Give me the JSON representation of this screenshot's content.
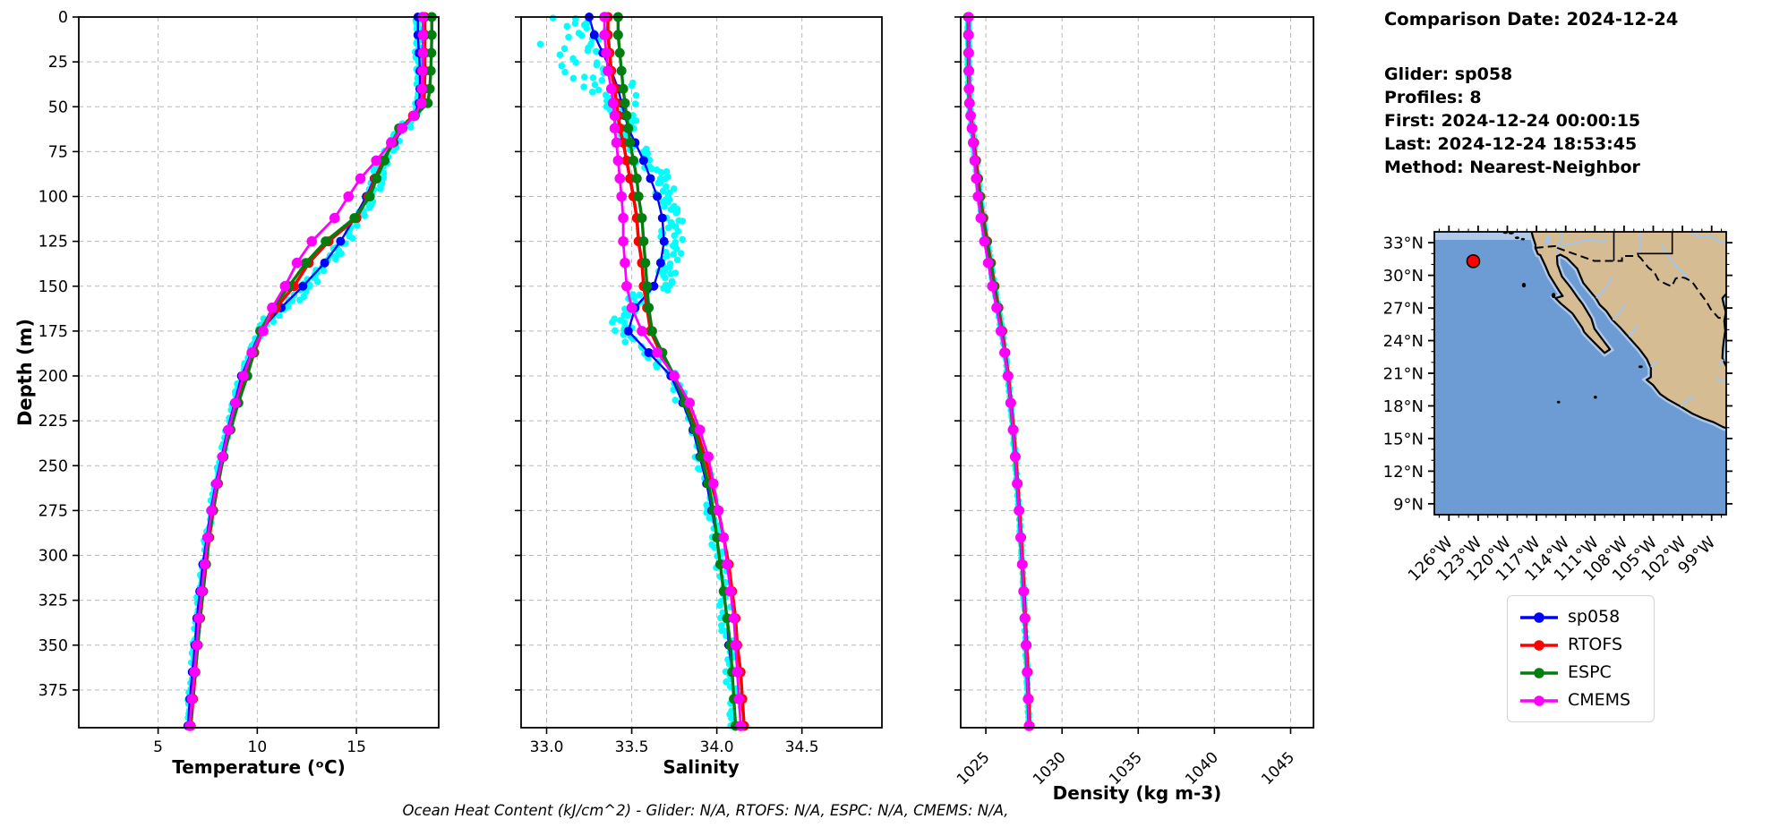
{
  "info": {
    "comparison_date": "Comparison Date: 2024-12-24",
    "glider": "Glider: sp058",
    "profiles": "Profiles: 8",
    "first": "First: 2024-12-24 00:00:15",
    "last": "Last: 2024-12-24 18:53:45",
    "method": "Method: Nearest-Neighbor"
  },
  "caption": "Ocean Heat Content (kJ/cm^2) - Glider: N/A,  RTOFS: N/A,  ESPC: N/A,  CMEMS: N/A,",
  "legend": {
    "items": [
      {
        "label": "sp058",
        "color": "#0000ff"
      },
      {
        "label": "RTOFS",
        "color": "#ff0000"
      },
      {
        "label": "ESPC",
        "color": "#007f0e"
      },
      {
        "label": "CMEMS",
        "color": "#ff00ff"
      }
    ]
  },
  "colors": {
    "grid": "#b8b8b8",
    "spine": "#000000",
    "scatter": "#00ffff",
    "map_ocean": "#6d9bd3",
    "map_shallow": "#b0c9e8",
    "map_land": "#d5bc93",
    "map_river": "#a4c6ea",
    "map_marker": "#ff0000"
  },
  "chart_data": [
    {
      "type": "line",
      "panel": "temperature-profile",
      "xlabel": "Temperature (ᵒC)",
      "ylabel": "Depth (m)",
      "xlim": [
        1.0,
        19.15
      ],
      "ylim": [
        396,
        0
      ],
      "xticks": [
        5,
        10,
        15
      ],
      "yticks": [
        0,
        25,
        50,
        75,
        100,
        125,
        150,
        175,
        200,
        225,
        250,
        275,
        300,
        325,
        350,
        375
      ],
      "depths": [
        0,
        10,
        20,
        30,
        40,
        48,
        55,
        62,
        70,
        80,
        90,
        100,
        112,
        125,
        137,
        150,
        162,
        175,
        187,
        200,
        215,
        230,
        245,
        260,
        275,
        290,
        305,
        320,
        335,
        350,
        365,
        380,
        395
      ],
      "series": [
        {
          "name": "sp058",
          "color": "#0000ff",
          "values": [
            18.1,
            18.1,
            18.15,
            18.2,
            18.2,
            18.15,
            17.9,
            17.35,
            16.9,
            16.35,
            15.9,
            15.5,
            14.9,
            14.2,
            13.4,
            12.3,
            11.2,
            10.15,
            9.7,
            9.2,
            8.85,
            8.5,
            8.2,
            7.9,
            7.65,
            7.45,
            7.25,
            7.1,
            6.95,
            6.85,
            6.72,
            6.6,
            6.5
          ]
        },
        {
          "name": "RTOFS",
          "color": "#ff0000",
          "values": [
            18.45,
            18.45,
            18.45,
            18.45,
            18.43,
            18.4,
            17.85,
            17.25,
            16.85,
            16.35,
            15.95,
            15.6,
            15.0,
            13.6,
            12.6,
            11.85,
            10.95,
            10.25,
            9.85,
            9.45,
            9.0,
            8.62,
            8.3,
            8.02,
            7.78,
            7.58,
            7.42,
            7.27,
            7.12,
            7.0,
            6.88,
            6.76,
            6.65
          ]
        },
        {
          "name": "ESPC",
          "color": "#007f0e",
          "values": [
            18.8,
            18.8,
            18.78,
            18.75,
            18.7,
            18.6,
            17.95,
            17.15,
            16.8,
            16.42,
            16.02,
            15.68,
            14.9,
            13.45,
            12.45,
            11.6,
            10.8,
            10.15,
            9.82,
            9.5,
            9.05,
            8.65,
            8.3,
            8.0,
            7.75,
            7.55,
            7.4,
            7.25,
            7.1,
            7.0,
            6.85,
            6.72,
            6.6
          ]
        },
        {
          "name": "CMEMS",
          "color": "#ff00ff",
          "values": [
            18.35,
            18.35,
            18.35,
            18.33,
            18.3,
            18.28,
            17.9,
            17.3,
            16.75,
            16.0,
            15.2,
            14.6,
            13.9,
            12.75,
            12.0,
            11.4,
            10.75,
            10.3,
            9.72,
            9.3,
            8.9,
            8.55,
            8.25,
            7.95,
            7.7,
            7.5,
            7.35,
            7.2,
            7.05,
            6.95,
            6.83,
            6.7,
            6.6
          ]
        }
      ],
      "scatter": {
        "name": "sp058 raw profiles",
        "color": "#00ffff",
        "follows": "sp058",
        "jitter_shallow": 0.18,
        "jitter_mid": 0.32,
        "jitter_deep": 0.12
      }
    },
    {
      "type": "line",
      "panel": "salinity-profile",
      "xlabel": "Salinity",
      "ylabel": "Depth (m)",
      "xlim": [
        32.85,
        34.97
      ],
      "ylim": [
        396,
        0
      ],
      "xticks": [
        33.0,
        33.5,
        34.0,
        34.5
      ],
      "yticks": [
        0,
        25,
        50,
        75,
        100,
        125,
        150,
        175,
        200,
        225,
        250,
        275,
        300,
        325,
        350,
        375
      ],
      "depths": [
        0,
        10,
        20,
        30,
        40,
        48,
        55,
        62,
        70,
        80,
        90,
        100,
        112,
        125,
        137,
        150,
        162,
        175,
        187,
        200,
        215,
        230,
        245,
        260,
        275,
        290,
        305,
        320,
        335,
        350,
        365,
        380,
        395
      ],
      "series": [
        {
          "name": "sp058",
          "color": "#0000ff",
          "values": [
            33.25,
            33.28,
            33.33,
            33.38,
            33.42,
            33.44,
            33.46,
            33.48,
            33.52,
            33.57,
            33.61,
            33.65,
            33.68,
            33.69,
            33.67,
            33.63,
            33.52,
            33.48,
            33.6,
            33.73,
            33.8,
            33.86,
            33.9,
            33.94,
            33.97,
            34.0,
            34.02,
            34.04,
            34.06,
            34.07,
            34.09,
            34.1,
            34.11
          ]
        },
        {
          "name": "RTOFS",
          "color": "#ff0000",
          "values": [
            33.36,
            33.36,
            33.37,
            33.38,
            33.4,
            33.41,
            33.42,
            33.43,
            33.45,
            33.47,
            33.49,
            33.51,
            33.53,
            33.54,
            33.56,
            33.57,
            33.59,
            33.61,
            33.67,
            33.75,
            33.82,
            33.88,
            33.93,
            33.97,
            34.01,
            34.04,
            34.07,
            34.09,
            34.11,
            34.12,
            34.14,
            34.15,
            34.16
          ]
        },
        {
          "name": "ESPC",
          "color": "#007f0e",
          "values": [
            33.42,
            33.42,
            33.43,
            33.44,
            33.45,
            33.46,
            33.47,
            33.48,
            33.49,
            33.51,
            33.53,
            33.54,
            33.56,
            33.57,
            33.58,
            33.59,
            33.6,
            33.62,
            33.68,
            33.75,
            33.81,
            33.87,
            33.91,
            33.95,
            33.98,
            34.0,
            34.02,
            34.04,
            34.06,
            34.08,
            34.09,
            34.1,
            34.11
          ]
        },
        {
          "name": "CMEMS",
          "color": "#ff00ff",
          "values": [
            33.34,
            33.34,
            33.35,
            33.36,
            33.38,
            33.39,
            33.4,
            33.4,
            33.41,
            33.42,
            33.43,
            33.44,
            33.45,
            33.45,
            33.46,
            33.47,
            33.5,
            33.56,
            33.65,
            33.75,
            33.84,
            33.9,
            33.95,
            33.98,
            34.01,
            34.04,
            34.06,
            34.08,
            34.1,
            34.11,
            34.12,
            34.13,
            34.14
          ]
        }
      ],
      "scatter": {
        "name": "sp058 raw profiles",
        "color": "#00ffff",
        "follows": "sp058",
        "jitter_shallow": 0.1,
        "jitter_mid": 0.07,
        "jitter_deep": 0.04
      }
    },
    {
      "type": "line",
      "panel": "density-profile",
      "xlabel": "Density (kg m-3)",
      "ylabel": "Depth (m)",
      "xlim": [
        1023.35,
        1046.5
      ],
      "ylim": [
        396,
        0
      ],
      "xticks": [
        1025,
        1030,
        1035,
        1040,
        1045
      ],
      "xtick_rotation": 45,
      "yticks": [
        0,
        25,
        50,
        75,
        100,
        125,
        150,
        175,
        200,
        225,
        250,
        275,
        300,
        325,
        350,
        375
      ],
      "depths": [
        0,
        10,
        20,
        30,
        40,
        48,
        55,
        62,
        70,
        80,
        90,
        100,
        112,
        125,
        137,
        150,
        162,
        175,
        187,
        200,
        215,
        230,
        245,
        260,
        275,
        290,
        305,
        320,
        335,
        350,
        365,
        380,
        395
      ],
      "series": [
        {
          "name": "sp058",
          "color": "#0000ff",
          "values": [
            1023.85,
            1023.85,
            1023.86,
            1023.87,
            1023.89,
            1023.92,
            1024.0,
            1024.1,
            1024.2,
            1024.33,
            1024.46,
            1024.6,
            1024.8,
            1025.05,
            1025.3,
            1025.55,
            1025.8,
            1026.05,
            1026.25,
            1026.45,
            1026.62,
            1026.78,
            1026.92,
            1027.05,
            1027.17,
            1027.28,
            1027.38,
            1027.47,
            1027.55,
            1027.63,
            1027.7,
            1027.77,
            1027.83
          ]
        },
        {
          "name": "RTOFS",
          "color": "#ff0000",
          "values": [
            1023.88,
            1023.88,
            1023.89,
            1023.9,
            1023.92,
            1023.95,
            1024.02,
            1024.12,
            1024.23,
            1024.36,
            1024.5,
            1024.64,
            1024.84,
            1025.09,
            1025.34,
            1025.58,
            1025.83,
            1026.08,
            1026.28,
            1026.48,
            1026.66,
            1026.82,
            1026.96,
            1027.09,
            1027.21,
            1027.32,
            1027.42,
            1027.51,
            1027.6,
            1027.68,
            1027.75,
            1027.82,
            1027.88
          ]
        },
        {
          "name": "ESPC",
          "color": "#007f0e",
          "values": [
            1023.83,
            1023.83,
            1023.84,
            1023.85,
            1023.87,
            1023.9,
            1023.98,
            1024.08,
            1024.19,
            1024.32,
            1024.45,
            1024.59,
            1024.79,
            1025.04,
            1025.29,
            1025.54,
            1025.79,
            1026.04,
            1026.24,
            1026.44,
            1026.61,
            1026.77,
            1026.91,
            1027.04,
            1027.16,
            1027.27,
            1027.37,
            1027.46,
            1027.54,
            1027.62,
            1027.69,
            1027.76,
            1027.82
          ]
        },
        {
          "name": "CMEMS",
          "color": "#ff00ff",
          "values": [
            1023.87,
            1023.87,
            1023.88,
            1023.89,
            1023.9,
            1023.93,
            1024.0,
            1024.08,
            1024.16,
            1024.26,
            1024.36,
            1024.48,
            1024.66,
            1024.9,
            1025.15,
            1025.42,
            1025.7,
            1025.98,
            1026.22,
            1026.44,
            1026.62,
            1026.78,
            1026.92,
            1027.05,
            1027.17,
            1027.28,
            1027.38,
            1027.47,
            1027.55,
            1027.63,
            1027.7,
            1027.77,
            1027.83
          ]
        }
      ],
      "scatter": {
        "name": "sp058 raw profiles",
        "color": "#00ffff",
        "follows": "sp058",
        "jitter_shallow": 0.06,
        "jitter_mid": 0.05,
        "jitter_deep": 0.04
      }
    },
    {
      "type": "map",
      "panel": "glider-location-map",
      "extent": {
        "lon": [
          -127.5,
          -97.5
        ],
        "lat": [
          8,
          34
        ]
      },
      "lat_ticks": [
        {
          "value": 33,
          "label": "33°N"
        },
        {
          "value": 30,
          "label": "30°N"
        },
        {
          "value": 27,
          "label": "27°N"
        },
        {
          "value": 24,
          "label": "24°N"
        },
        {
          "value": 21,
          "label": "21°N"
        },
        {
          "value": 18,
          "label": "18°N"
        },
        {
          "value": 15,
          "label": "15°N"
        },
        {
          "value": 12,
          "label": "12°N"
        },
        {
          "value": 9,
          "label": "9°N"
        }
      ],
      "lon_ticks": [
        {
          "value": -126,
          "label": "126°W"
        },
        {
          "value": -123,
          "label": "123°W"
        },
        {
          "value": -120,
          "label": "120°W"
        },
        {
          "value": -117,
          "label": "117°W"
        },
        {
          "value": -114,
          "label": "114°W"
        },
        {
          "value": -111,
          "label": "111°W"
        },
        {
          "value": -108,
          "label": "108°W"
        },
        {
          "value": -105,
          "label": "105°W"
        },
        {
          "value": -102,
          "label": "102°W"
        },
        {
          "value": -99,
          "label": "99°W"
        }
      ],
      "marker": {
        "lon": -123.5,
        "lat": 31.3,
        "color": "#ff0000"
      }
    }
  ]
}
